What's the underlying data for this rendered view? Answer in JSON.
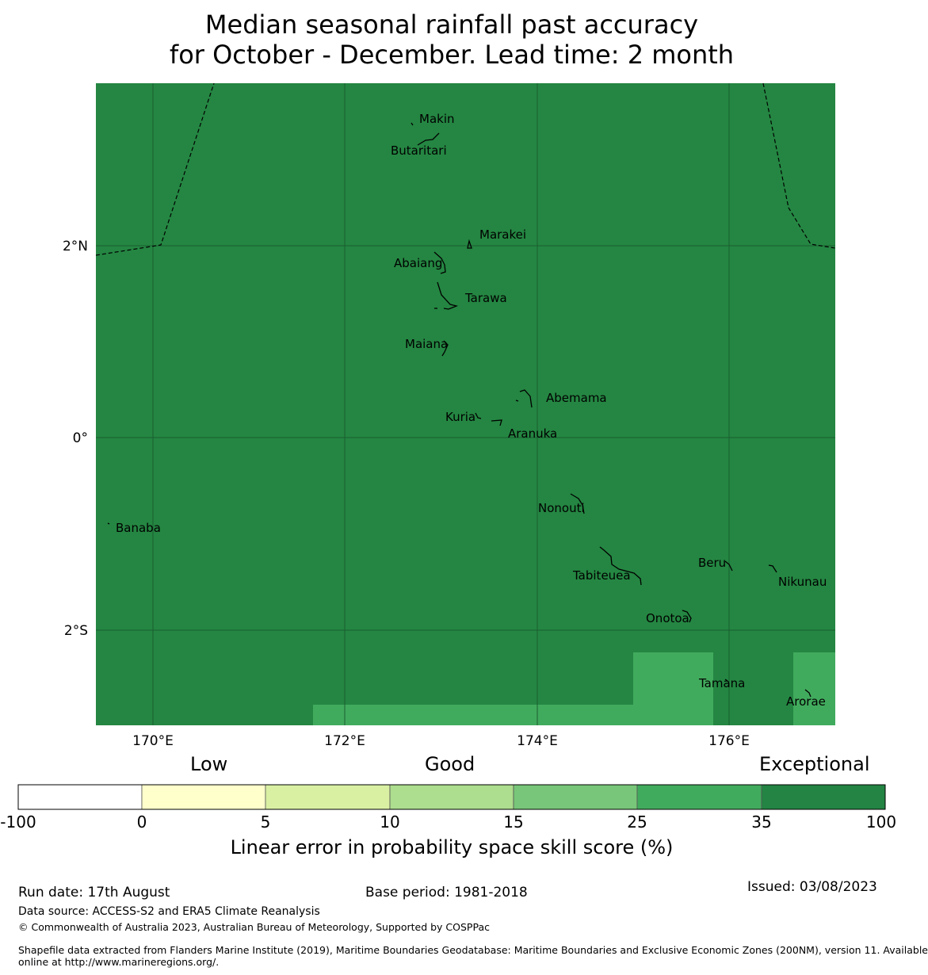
{
  "title_line1": "Median seasonal rainfall past accuracy",
  "title_line2": "for October - December. Lead time: 2 month",
  "map": {
    "lon_ticks": [
      "170°E",
      "172°E",
      "174°E",
      "176°E"
    ],
    "lat_ticks": [
      "2°N",
      "0°",
      "2°S"
    ],
    "background_color": "#248642",
    "patch_color": "#41ab5d",
    "gridline_color": "#1a5e30",
    "islands": [
      {
        "name": "Makin"
      },
      {
        "name": "Butaritari"
      },
      {
        "name": "Marakei"
      },
      {
        "name": "Abaiang"
      },
      {
        "name": "Tarawa"
      },
      {
        "name": "Maiana"
      },
      {
        "name": "Abemama"
      },
      {
        "name": "Kuria"
      },
      {
        "name": "Aranuka"
      },
      {
        "name": "Nonouti"
      },
      {
        "name": "Banaba"
      },
      {
        "name": "Beru"
      },
      {
        "name": "Tabiteuea"
      },
      {
        "name": "Nikunau"
      },
      {
        "name": "Onotoa"
      },
      {
        "name": "Tamana"
      },
      {
        "name": "Arorae"
      }
    ]
  },
  "colorbar": {
    "categories": [
      "Low",
      "Good",
      "Exceptional"
    ],
    "ticks": [
      "-100",
      "0",
      "5",
      "10",
      "15",
      "25",
      "35",
      "100"
    ],
    "colors": [
      "#ffffff",
      "#ffffcc",
      "#d9f0a3",
      "#addd8e",
      "#78c679",
      "#41ab5d",
      "#238443"
    ],
    "label": "Linear error in probability space skill score (%)"
  },
  "footer": {
    "run_date": "Run date: 17th August",
    "base_period": "Base period: 1981-2018",
    "issued": "Issued: 03/08/2023",
    "data_source": "Data source: ACCESS-S2 and ERA5 Climate Reanalysis",
    "copyright": "© Commonwealth of Australia 2023, Australian Bureau of Meteorology, Supported by COSPPac",
    "shapefile_line1": "Shapefile data extracted from Flanders Marine Institute (2019), Maritime Boundaries Geodatabase: Maritime Boundaries and Exclusive Economic Zones (200NM), version 11. Available",
    "shapefile_line2": "online at http://www.marineregions.org/."
  }
}
